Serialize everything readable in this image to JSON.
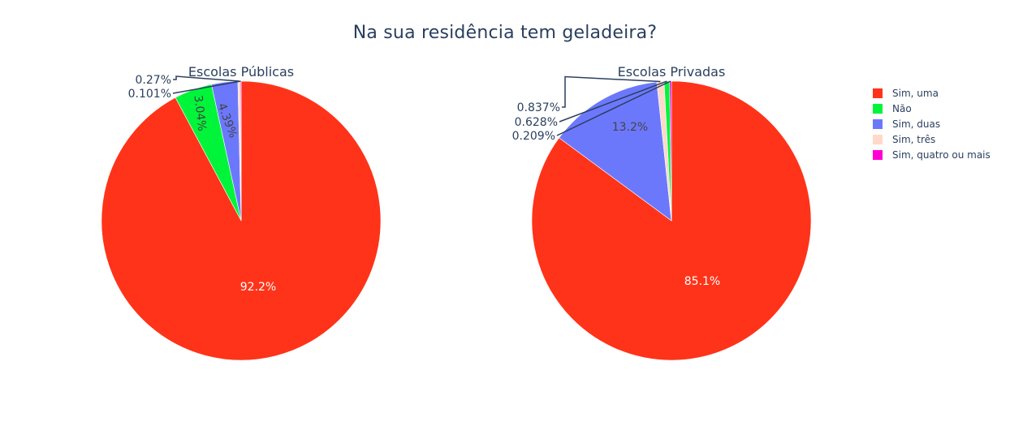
{
  "title": "Na sua residência tem geladeira?",
  "colors": {
    "Sim, uma": "#ff3319",
    "Não": "#00f53a",
    "Sim, duas": "#6c78fc",
    "Sim, três": "#ffd9c9",
    "Sim, quatro ou mais": "#ff00d2"
  },
  "chart_data": [
    {
      "type": "pie",
      "title": "Escolas Públicas",
      "categories": [
        "Sim, uma",
        "Não",
        "Sim, duas",
        "Sim, três",
        "Sim, quatro ou mais"
      ],
      "values": [
        92.2,
        4.39,
        3.04,
        0.27,
        0.101
      ],
      "labels": [
        "92.2%",
        "4.39%",
        "3.04%",
        "0.27%",
        "0.101%"
      ]
    },
    {
      "type": "pie",
      "title": "Escolas Privadas",
      "categories": [
        "Sim, uma",
        "Sim, duas",
        "Sim, três",
        "Não",
        "Sim, quatro ou mais"
      ],
      "values": [
        85.1,
        13.2,
        0.837,
        0.628,
        0.209
      ],
      "labels": [
        "85.1%",
        "13.2%",
        "0.837%",
        "0.628%",
        "0.209%"
      ]
    }
  ],
  "legend": [
    "Sim, uma",
    "Não",
    "Sim, duas",
    "Sim, três",
    "Sim, quatro ou mais"
  ]
}
